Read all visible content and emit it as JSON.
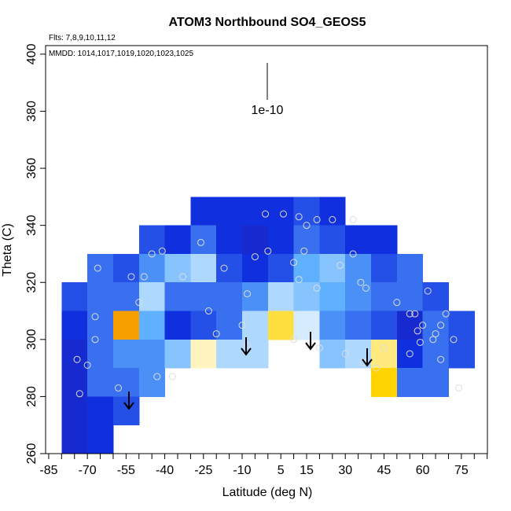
{
  "chart_data": {
    "type": "heatmap",
    "title": "ATOM3 Northbound SO4_GEOS5",
    "subtitle": "Flts: 7,8,9,10,11,12",
    "annotation": "MMDD: 1014,1017,1019,1020,1023,1025",
    "scale_label": "1e-10",
    "x_label": "Latitude (deg N)",
    "y_label": "Theta (C)",
    "xlim": [
      -86.2,
      85.1
    ],
    "ylim": [
      260,
      403
    ],
    "xticks": [
      -85,
      -70,
      -55,
      -40,
      -25,
      -10,
      5,
      15,
      30,
      45,
      60,
      75
    ],
    "xminorticks": [
      -80,
      -75,
      -65,
      -60,
      -50,
      -45,
      -35,
      -30,
      -20,
      -15,
      -5,
      0,
      10,
      20,
      25,
      35,
      40,
      50,
      55,
      65,
      70,
      80,
      85
    ],
    "yticks": [
      260,
      280,
      300,
      320,
      340,
      360,
      380,
      400
    ],
    "colormap": [
      "#2a17a0",
      "#1030e0",
      "#5fb0ff",
      "#ffffff",
      "#ffd400",
      "#e00000"
    ],
    "cell_width": 10,
    "cell_height": 10,
    "x": [
      -75,
      -65,
      -55,
      -45,
      -35,
      -25,
      -15,
      -5,
      5,
      15,
      25,
      35,
      45,
      55,
      65,
      75
    ],
    "y": [
      345,
      335,
      325,
      315,
      305,
      295,
      285,
      275,
      265
    ],
    "z": [
      [
        null,
        null,
        null,
        null,
        null,
        0.2,
        0.2,
        0.2,
        0.2,
        0.25,
        0.2,
        null,
        null,
        null,
        null,
        null
      ],
      [
        null,
        null,
        null,
        0.25,
        0.2,
        0.3,
        0.2,
        0.15,
        0.2,
        0.3,
        0.25,
        0.2,
        0.2,
        null,
        null,
        null
      ],
      [
        null,
        0.3,
        0.25,
        0.35,
        0.45,
        0.5,
        0.25,
        0.2,
        0.25,
        0.4,
        0.45,
        0.35,
        0.25,
        0.3,
        null,
        null
      ],
      [
        0.25,
        0.3,
        0.3,
        0.5,
        0.3,
        0.3,
        0.3,
        0.35,
        0.5,
        0.45,
        0.4,
        0.35,
        0.3,
        0.3,
        0.25,
        null
      ],
      [
        0.2,
        0.3,
        0.85,
        0.4,
        0.2,
        0.25,
        0.3,
        0.5,
        0.75,
        0.55,
        0.35,
        0.3,
        0.25,
        0.15,
        0.3,
        0.25
      ],
      [
        0.15,
        0.3,
        0.35,
        0.35,
        0.45,
        0.65,
        0.5,
        0.5,
        null,
        null,
        0.45,
        0.5,
        0.7,
        0.2,
        0.3,
        0.25
      ],
      [
        0.15,
        0.3,
        0.3,
        0.35,
        null,
        null,
        null,
        null,
        null,
        null,
        null,
        null,
        0.8,
        0.3,
        0.3,
        null
      ],
      [
        0.15,
        0.2,
        0.25,
        null,
        null,
        null,
        null,
        null,
        null,
        null,
        null,
        null,
        null,
        null,
        null,
        null
      ],
      [
        0.15,
        0.2,
        null,
        null,
        null,
        null,
        null,
        null,
        null,
        null,
        null,
        null,
        null,
        null,
        null,
        null
      ]
    ],
    "points": {
      "x": [
        -74,
        -73,
        -70,
        -67,
        -67,
        -66,
        -58,
        -50,
        -48,
        -53,
        -45,
        -41,
        -43,
        -37,
        -33,
        -26,
        -23,
        -20,
        -17,
        -10,
        -8,
        -8,
        -5,
        0,
        -1,
        6,
        12,
        15,
        10,
        14,
        19,
        19,
        10,
        16,
        20,
        25,
        28,
        33,
        36,
        30,
        38,
        37,
        45,
        42,
        50,
        55,
        55,
        57,
        58,
        59,
        62,
        60,
        64,
        65,
        67,
        67,
        69,
        72,
        74,
        33,
        12
      ],
      "y": [
        293,
        281,
        291,
        308,
        300,
        325,
        283,
        313,
        322,
        322,
        330,
        331,
        287,
        287,
        322,
        334,
        310,
        302,
        325,
        305,
        298,
        316,
        329,
        331,
        344,
        344,
        343,
        340,
        327,
        331,
        342,
        318,
        300,
        298,
        297,
        342,
        326,
        330,
        320,
        295,
        318,
        292,
        297,
        290,
        313,
        295,
        309,
        309,
        303,
        299,
        317,
        305,
        300,
        302,
        305,
        293,
        309,
        300,
        283,
        342,
        321
      ]
    }
  }
}
